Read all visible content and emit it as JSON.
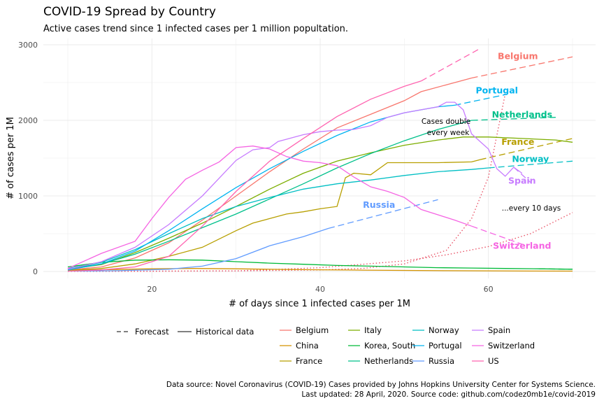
{
  "chart_data": {
    "type": "line",
    "title": "COVID-19 Spread by Country",
    "subtitle": "Active cases trend since 1 infected cases per 1 million popultation.",
    "xlabel": "# of days since 1 infected cases per 1M",
    "ylabel": "# of cases per 1M",
    "xlim": [
      10,
      70
    ],
    "ylim": [
      0,
      3000
    ],
    "xticks": [
      20,
      40,
      60
    ],
    "yticks": [
      0,
      1000,
      2000,
      3000
    ],
    "grid": true,
    "legend_position": "bottom",
    "linetype_legend": {
      "forecast": "Forecast",
      "historical": "Historical data"
    },
    "annotations": {
      "double_week_line1": "Cases double",
      "double_week_line2": "every week",
      "ten_days": "...every 10 days"
    },
    "caption_line1": "Data source: Novel Coronavirus (COVID-19) Cases provided by Johns Hopkins University Center for Systems Science.",
    "caption_line2": "Last updated: 28 April, 2020. Source code: github.com/codez0mb1e/covid-2019",
    "series": [
      {
        "name": "Belgium",
        "color": "#F8766D",
        "x": [
          10,
          14,
          18,
          22,
          26,
          30,
          34,
          38,
          42,
          46,
          50,
          52,
          55,
          58
        ],
        "values": [
          20,
          60,
          180,
          380,
          680,
          1000,
          1320,
          1620,
          1900,
          2080,
          2260,
          2380,
          2470,
          2560
        ],
        "forecast_x": [
          58,
          70
        ],
        "forecast_values": [
          2560,
          2840
        ],
        "label_x": 63.5,
        "label_y": 2845
      },
      {
        "name": "China",
        "color": "#D39200",
        "x": [
          10,
          15,
          20,
          25,
          30,
          35,
          40,
          45,
          50,
          55,
          60,
          65,
          70
        ],
        "values": [
          15,
          25,
          35,
          40,
          35,
          28,
          22,
          18,
          14,
          10,
          8,
          6,
          5
        ],
        "forecast_x": [],
        "forecast_values": [],
        "label_x": null,
        "label_y": null
      },
      {
        "name": "France",
        "color": "#B79F00",
        "x": [
          10,
          14,
          18,
          22,
          26,
          30,
          32,
          34,
          36,
          38,
          40,
          42,
          43,
          44,
          46,
          48,
          50,
          54,
          58,
          59
        ],
        "values": [
          15,
          40,
          100,
          200,
          320,
          540,
          640,
          700,
          760,
          790,
          830,
          860,
          1240,
          1300,
          1280,
          1440,
          1440,
          1440,
          1450,
          1480
        ],
        "forecast_x": [
          59,
          70
        ],
        "forecast_values": [
          1480,
          1760
        ],
        "label_x": 63.5,
        "label_y": 1715
      },
      {
        "name": "Italy",
        "color": "#7CAE00",
        "x": [
          10,
          14,
          18,
          22,
          26,
          30,
          34,
          38,
          42,
          46,
          50,
          54,
          57,
          60,
          64,
          68,
          70
        ],
        "values": [
          30,
          90,
          250,
          440,
          640,
          860,
          1090,
          1300,
          1460,
          1570,
          1670,
          1740,
          1780,
          1780,
          1760,
          1740,
          1710
        ],
        "forecast_x": [],
        "forecast_values": [],
        "label_x": null,
        "label_y": null
      },
      {
        "name": "Korea, South",
        "color": "#00BA38",
        "x": [
          10,
          14,
          18,
          22,
          26,
          30,
          34,
          38,
          42,
          46,
          50,
          54,
          58,
          62,
          66,
          70
        ],
        "values": [
          60,
          120,
          150,
          155,
          150,
          130,
          110,
          95,
          80,
          70,
          60,
          50,
          45,
          40,
          35,
          30
        ],
        "forecast_x": [
          66,
          70
        ],
        "forecast_values": [
          35,
          30
        ],
        "label_x": null,
        "label_y": null
      },
      {
        "name": "Netherlands",
        "color": "#00C08B",
        "x": [
          10,
          14,
          18,
          22,
          26,
          30,
          34,
          38,
          42,
          46,
          50,
          54,
          58
        ],
        "values": [
          40,
          100,
          230,
          400,
          580,
          760,
          960,
          1160,
          1370,
          1560,
          1730,
          1880,
          2000
        ],
        "forecast_x": [
          58,
          68
        ],
        "forecast_values": [
          2000,
          2040
        ],
        "label_x": 64,
        "label_y": 2075
      },
      {
        "name": "Norway",
        "color": "#00BFC4",
        "x": [
          10,
          14,
          18,
          22,
          26,
          30,
          34,
          38,
          42,
          46,
          50,
          54,
          58,
          60
        ],
        "values": [
          40,
          120,
          290,
          500,
          700,
          860,
          980,
          1090,
          1160,
          1210,
          1270,
          1320,
          1350,
          1370
        ],
        "forecast_x": [
          60,
          70
        ],
        "forecast_values": [
          1370,
          1460
        ],
        "label_x": 65,
        "label_y": 1485
      },
      {
        "name": "Portugal",
        "color": "#00B4F0",
        "x": [
          10,
          14,
          18,
          22,
          26,
          30,
          34,
          38,
          42,
          46,
          50,
          54,
          56
        ],
        "values": [
          20,
          100,
          270,
          540,
          830,
          1110,
          1360,
          1590,
          1800,
          1980,
          2100,
          2180,
          2200
        ],
        "forecast_x": [
          56,
          62
        ],
        "forecast_values": [
          2200,
          2340
        ],
        "label_x": 61,
        "label_y": 2395
      },
      {
        "name": "Russia",
        "color": "#619CFF",
        "x": [
          10,
          16,
          22,
          26,
          30,
          34,
          38,
          41
        ],
        "values": [
          5,
          10,
          30,
          70,
          170,
          340,
          460,
          570
        ],
        "forecast_x": [
          41,
          54
        ],
        "forecast_values": [
          570,
          950
        ],
        "label_x": 47,
        "label_y": 880
      },
      {
        "name": "Spain",
        "color": "#C77CFF",
        "x": [
          10,
          14,
          18,
          22,
          26,
          30,
          32,
          34,
          35,
          36,
          38,
          40,
          42,
          44,
          46,
          48,
          50,
          52,
          54,
          55,
          56,
          57,
          58,
          60,
          61,
          62,
          63,
          64
        ],
        "values": [
          30,
          130,
          320,
          620,
          1000,
          1470,
          1610,
          1640,
          1720,
          1750,
          1810,
          1850,
          1870,
          1880,
          1930,
          2040,
          2100,
          2140,
          2180,
          2240,
          2240,
          2140,
          1820,
          1620,
          1360,
          1260,
          1380,
          1300
        ],
        "forecast_x": [
          63,
          65
        ],
        "forecast_values": [
          1380,
          1180
        ],
        "label_x": 64,
        "label_y": 1200
      },
      {
        "name": "Switzerland",
        "color": "#F564E3",
        "x": [
          10,
          14,
          18,
          20,
          22,
          24,
          26,
          28,
          30,
          32,
          34,
          36,
          38,
          40,
          42,
          44,
          46,
          48,
          50,
          52,
          54,
          56,
          58
        ],
        "values": [
          40,
          240,
          400,
          700,
          980,
          1220,
          1340,
          1450,
          1640,
          1660,
          1620,
          1520,
          1460,
          1440,
          1400,
          1250,
          1120,
          1060,
          980,
          820,
          750,
          680,
          600
        ],
        "forecast_x": [
          58,
          64
        ],
        "forecast_values": [
          600,
          360
        ],
        "label_x": 64,
        "label_y": 340
      },
      {
        "name": "US",
        "color": "#FF64B0",
        "x": [
          10,
          14,
          18,
          22,
          26,
          30,
          34,
          38,
          42,
          46,
          50,
          52
        ],
        "values": [
          5,
          20,
          60,
          200,
          600,
          1060,
          1460,
          1760,
          2050,
          2280,
          2450,
          2520
        ],
        "forecast_x": [
          52,
          59
        ],
        "forecast_values": [
          2520,
          2950
        ],
        "label_x": null,
        "label_y": null
      }
    ],
    "reference_lines": [
      {
        "name": "double_week",
        "color": "#E84A5F",
        "x": [
          10,
          20,
          30,
          40,
          45,
          50,
          55,
          58,
          60,
          62
        ],
        "values": [
          1,
          3,
          7,
          20,
          40,
          100,
          280,
          700,
          1250,
          2350
        ]
      },
      {
        "name": "double_10_days",
        "color": "#E84A5F",
        "x": [
          10,
          30,
          40,
          50,
          55,
          60,
          65,
          70
        ],
        "values": [
          1,
          8,
          50,
          140,
          220,
          330,
          500,
          780
        ]
      }
    ]
  }
}
